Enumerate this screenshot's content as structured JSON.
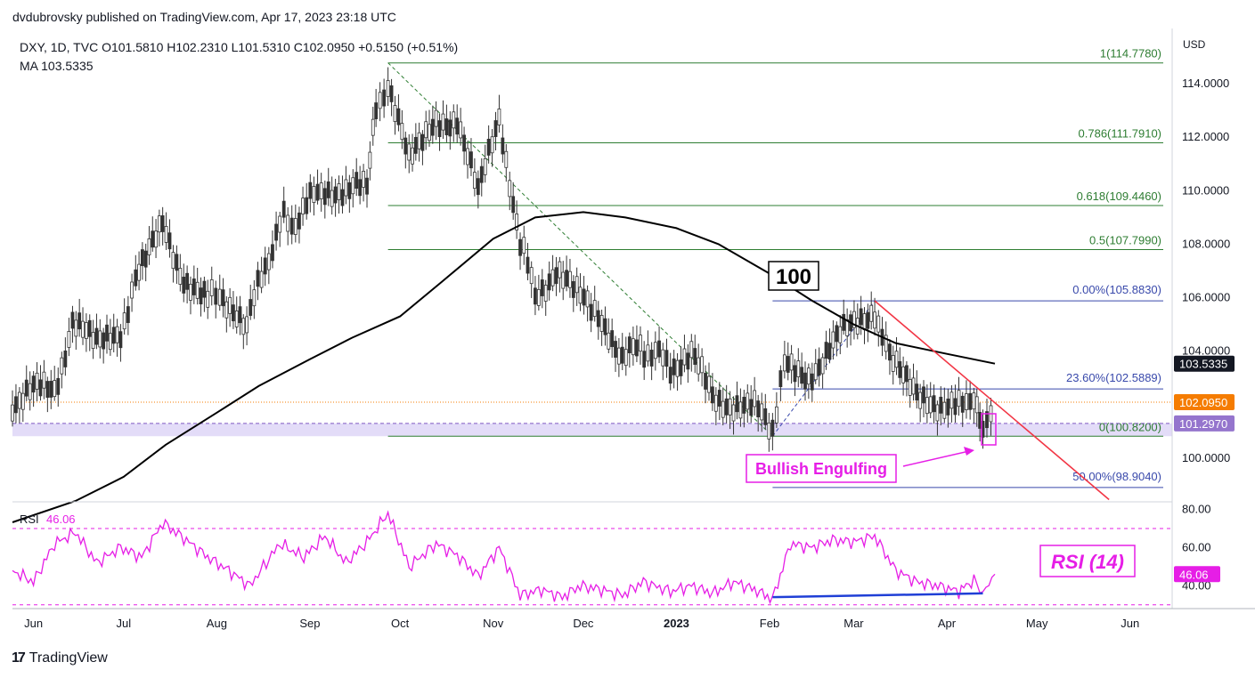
{
  "header": {
    "publisher": "dvdubrovsky published on TradingView.com, Apr 17, 2023 23:18 UTC",
    "symbol_line": "DXY, 1D, TVC  O101.5810  H102.2310  L101.5310  C102.0950  +0.5150 (+0.51%)",
    "ma_line": "MA  103.5335"
  },
  "brand": {
    "logo_text": "TradingView",
    "logo_icon": "tradingview-logo-icon"
  },
  "colors": {
    "fib_line": "#2e7d32",
    "fib_blue": "#3949ab",
    "ma_line": "#000000",
    "trendline": "#f23645",
    "rsi_line": "#e61ee6",
    "annotation": "#e61ee6",
    "last_price_badge": "#f57c00",
    "ma_badge": "#131722",
    "support_band": "#d9d0f5",
    "divergence": "#1f3fd6"
  },
  "chart_data": {
    "type": "candlestick",
    "title": "",
    "price_axis": {
      "unit_label": "USD",
      "ticks": [
        "114.0000",
        "112.0000",
        "110.0000",
        "108.0000",
        "106.0000",
        "104.0000",
        "100.0000"
      ],
      "tick_values": [
        114,
        112,
        110,
        108,
        106,
        104,
        100
      ],
      "ylim": [
        98.4,
        115.8
      ]
    },
    "time_axis": {
      "labels": [
        "Jun",
        "Jul",
        "Aug",
        "Sep",
        "Oct",
        "Nov",
        "Dec",
        "2023",
        "Feb",
        "Mar",
        "Apr",
        "May",
        "Jun"
      ],
      "label_dates": [
        "2022-06-01",
        "2022-07-01",
        "2022-08-01",
        "2022-09-01",
        "2022-10-01",
        "2022-11-01",
        "2022-12-01",
        "2023-01-01",
        "2023-02-01",
        "2023-03-01",
        "2023-04-01",
        "2023-05-01",
        "2023-06-01"
      ],
      "xlim": [
        "2022-05-25",
        "2023-06-15"
      ]
    },
    "series": [
      {
        "name": "DXY",
        "kind": "close_path",
        "points": [
          [
            "2022-05-25",
            102.1
          ],
          [
            "2022-06-01",
            102.5
          ],
          [
            "2022-06-08",
            102.6
          ],
          [
            "2022-06-14",
            105.0
          ],
          [
            "2022-06-22",
            104.2
          ],
          [
            "2022-06-30",
            104.8
          ],
          [
            "2022-07-05",
            106.5
          ],
          [
            "2022-07-14",
            108.7
          ],
          [
            "2022-07-21",
            106.8
          ],
          [
            "2022-07-29",
            105.9
          ],
          [
            "2022-08-02",
            106.3
          ],
          [
            "2022-08-11",
            105.0
          ],
          [
            "2022-08-22",
            108.9
          ],
          [
            "2022-08-26",
            108.8
          ],
          [
            "2022-09-06",
            110.2
          ],
          [
            "2022-09-13",
            109.8
          ],
          [
            "2022-09-20",
            110.2
          ],
          [
            "2022-09-23",
            112.8
          ],
          [
            "2022-09-27",
            114.1
          ],
          [
            "2022-10-04",
            111.0
          ],
          [
            "2022-10-13",
            112.5
          ],
          [
            "2022-10-20",
            112.8
          ],
          [
            "2022-10-27",
            109.8
          ],
          [
            "2022-11-03",
            112.9
          ],
          [
            "2022-11-10",
            108.0
          ],
          [
            "2022-11-15",
            106.2
          ],
          [
            "2022-11-22",
            107.0
          ],
          [
            "2022-11-30",
            105.9
          ],
          [
            "2022-12-06",
            105.6
          ],
          [
            "2022-12-14",
            103.6
          ],
          [
            "2022-12-20",
            104.2
          ],
          [
            "2022-12-30",
            103.5
          ],
          [
            "2023-01-06",
            103.9
          ],
          [
            "2023-01-13",
            102.2
          ],
          [
            "2023-01-20",
            102.1
          ],
          [
            "2023-01-27",
            101.8
          ],
          [
            "2023-02-02",
            101.2
          ],
          [
            "2023-02-06",
            103.4
          ],
          [
            "2023-02-14",
            103.1
          ],
          [
            "2023-02-21",
            104.1
          ],
          [
            "2023-02-28",
            104.9
          ],
          [
            "2023-03-08",
            105.6
          ],
          [
            "2023-03-13",
            103.6
          ],
          [
            "2023-03-22",
            102.4
          ],
          [
            "2023-03-30",
            102.1
          ],
          [
            "2023-04-05",
            101.8
          ],
          [
            "2023-04-10",
            102.5
          ],
          [
            "2023-04-13",
            101.3
          ],
          [
            "2023-04-17",
            102.095
          ]
        ]
      },
      {
        "name": "MA",
        "kind": "line",
        "points": [
          [
            "2022-05-25",
            97.6
          ],
          [
            "2022-06-15",
            98.4
          ],
          [
            "2022-07-01",
            99.3
          ],
          [
            "2022-07-15",
            100.5
          ],
          [
            "2022-08-01",
            101.7
          ],
          [
            "2022-08-15",
            102.7
          ],
          [
            "2022-09-01",
            103.7
          ],
          [
            "2022-09-15",
            104.5
          ],
          [
            "2022-10-01",
            105.3
          ],
          [
            "2022-10-15",
            106.6
          ],
          [
            "2022-11-01",
            108.2
          ],
          [
            "2022-11-15",
            109.0
          ],
          [
            "2022-12-01",
            109.2
          ],
          [
            "2022-12-15",
            109.0
          ],
          [
            "2023-01-01",
            108.6
          ],
          [
            "2023-01-15",
            108.0
          ],
          [
            "2023-02-01",
            106.9
          ],
          [
            "2023-02-15",
            105.9
          ],
          [
            "2023-03-01",
            105.0
          ],
          [
            "2023-03-15",
            104.3
          ],
          [
            "2023-04-01",
            103.9
          ],
          [
            "2023-04-17",
            103.5335
          ]
        ]
      }
    ],
    "fib_levels": [
      {
        "label": "1(114.7780)",
        "value": 114.778,
        "color": "#2e7d32"
      },
      {
        "label": "0.786(111.7910)",
        "value": 111.791,
        "color": "#2e7d32"
      },
      {
        "label": "0.618(109.4460)",
        "value": 109.446,
        "color": "#2e7d32"
      },
      {
        "label": "0.5(107.7990)",
        "value": 107.799,
        "color": "#2e7d32"
      },
      {
        "label": "0(100.8200)",
        "value": 100.82,
        "color": "#2e7d32"
      }
    ],
    "fib_extension": [
      {
        "label": "0.00%(105.8830)",
        "value": 105.883,
        "color": "#3949ab"
      },
      {
        "label": "23.60%(102.5889)",
        "value": 102.5889,
        "color": "#3949ab"
      },
      {
        "label": "50.00%(98.9040)",
        "value": 98.904,
        "color": "#3949ab"
      }
    ],
    "price_badges": [
      {
        "label": "103.5335",
        "value": 103.5335,
        "kind": "ma"
      },
      {
        "label": "102.0950",
        "value": 102.095,
        "kind": "last"
      },
      {
        "label": "101.2970",
        "value": 101.297,
        "kind": "support"
      }
    ],
    "support_zone": {
      "low": 100.82,
      "high": 101.297
    },
    "trendline": [
      [
        "2023-03-08",
        105.88
      ],
      [
        "2023-05-25",
        98.45
      ]
    ],
    "fib_swing": [
      [
        "2022-09-27",
        114.78
      ],
      [
        "2023-02-02",
        100.82
      ]
    ],
    "fib_ext_swing": [
      [
        "2023-02-02",
        100.82
      ],
      [
        "2023-03-08",
        105.88
      ]
    ],
    "annotations": {
      "ma_period": "100",
      "pattern": "Bullish Engulfing",
      "rsi_label": "RSI (14)"
    },
    "rsi": {
      "legend": "RSI",
      "value_label": "46.06",
      "ticks": [
        "80.00",
        "60.00",
        "40.00"
      ],
      "tick_values": [
        80,
        60,
        40
      ],
      "ylim": [
        28,
        84
      ],
      "upper_band": 70,
      "lower_band": 30,
      "points": [
        [
          "2022-05-25",
          48
        ],
        [
          "2022-06-01",
          42
        ],
        [
          "2022-06-08",
          62
        ],
        [
          "2022-06-15",
          68
        ],
        [
          "2022-06-22",
          52
        ],
        [
          "2022-06-30",
          60
        ],
        [
          "2022-07-07",
          55
        ],
        [
          "2022-07-14",
          73
        ],
        [
          "2022-07-21",
          65
        ],
        [
          "2022-07-29",
          55
        ],
        [
          "2022-08-05",
          48
        ],
        [
          "2022-08-12",
          40
        ],
        [
          "2022-08-22",
          62
        ],
        [
          "2022-08-30",
          55
        ],
        [
          "2022-09-06",
          66
        ],
        [
          "2022-09-13",
          52
        ],
        [
          "2022-09-20",
          63
        ],
        [
          "2022-09-27",
          78
        ],
        [
          "2022-10-04",
          50
        ],
        [
          "2022-10-13",
          62
        ],
        [
          "2022-10-20",
          56
        ],
        [
          "2022-10-27",
          45
        ],
        [
          "2022-11-03",
          60
        ],
        [
          "2022-11-10",
          35
        ],
        [
          "2022-11-17",
          38
        ],
        [
          "2022-11-24",
          34
        ],
        [
          "2022-11-30",
          40
        ],
        [
          "2022-12-07",
          38
        ],
        [
          "2022-12-14",
          35
        ],
        [
          "2022-12-21",
          42
        ],
        [
          "2022-12-30",
          37
        ],
        [
          "2023-01-06",
          40
        ],
        [
          "2023-01-13",
          36
        ],
        [
          "2023-01-20",
          42
        ],
        [
          "2023-01-27",
          38
        ],
        [
          "2023-02-02",
          33
        ],
        [
          "2023-02-08",
          62
        ],
        [
          "2023-02-15",
          60
        ],
        [
          "2023-02-22",
          64
        ],
        [
          "2023-03-01",
          63
        ],
        [
          "2023-03-08",
          66
        ],
        [
          "2023-03-15",
          48
        ],
        [
          "2023-03-22",
          42
        ],
        [
          "2023-03-29",
          40
        ],
        [
          "2023-04-05",
          37
        ],
        [
          "2023-04-10",
          43
        ],
        [
          "2023-04-13",
          36
        ],
        [
          "2023-04-17",
          46.06
        ]
      ],
      "divergence_line": [
        [
          "2023-02-02",
          34
        ],
        [
          "2023-04-13",
          36
        ]
      ]
    }
  }
}
